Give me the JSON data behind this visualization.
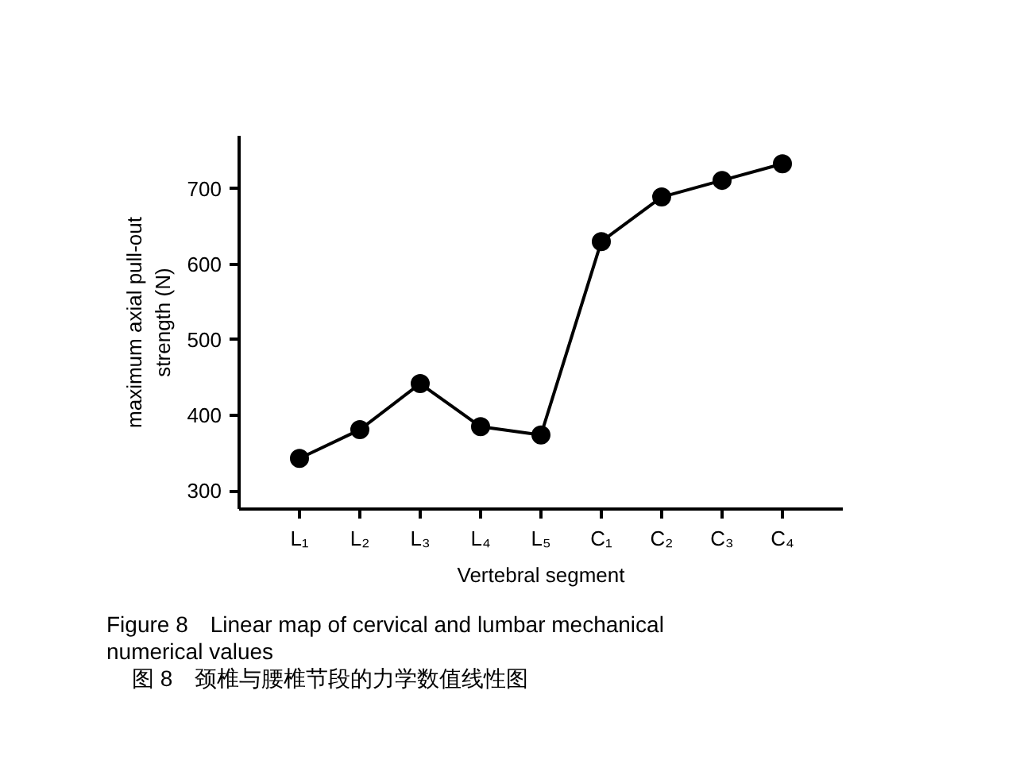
{
  "chart_data": {
    "type": "line",
    "xlabel": "Vertebral segment",
    "ylabel": "maximum axial pull-out\nstrength (N)",
    "categories": [
      "L₁",
      "L₂",
      "L₃",
      "L₄",
      "L₅",
      "C₁",
      "C₂",
      "C₃",
      "C₄"
    ],
    "series": [
      {
        "color": "#000000",
        "values": [
          343,
          381,
          442,
          385,
          374,
          630,
          689,
          711,
          733
        ]
      }
    ],
    "ylim": [
      276,
      770
    ],
    "yticks": [
      300,
      400,
      500,
      600,
      700
    ],
    "grid": false,
    "marker": "circle",
    "line_style": "solid",
    "annotations": [
      "Figure 8 Linear map of cervical and lumbar mechanical numerical values",
      "图 8 颈椎与腰椎节段的力学数值线性图"
    ]
  }
}
